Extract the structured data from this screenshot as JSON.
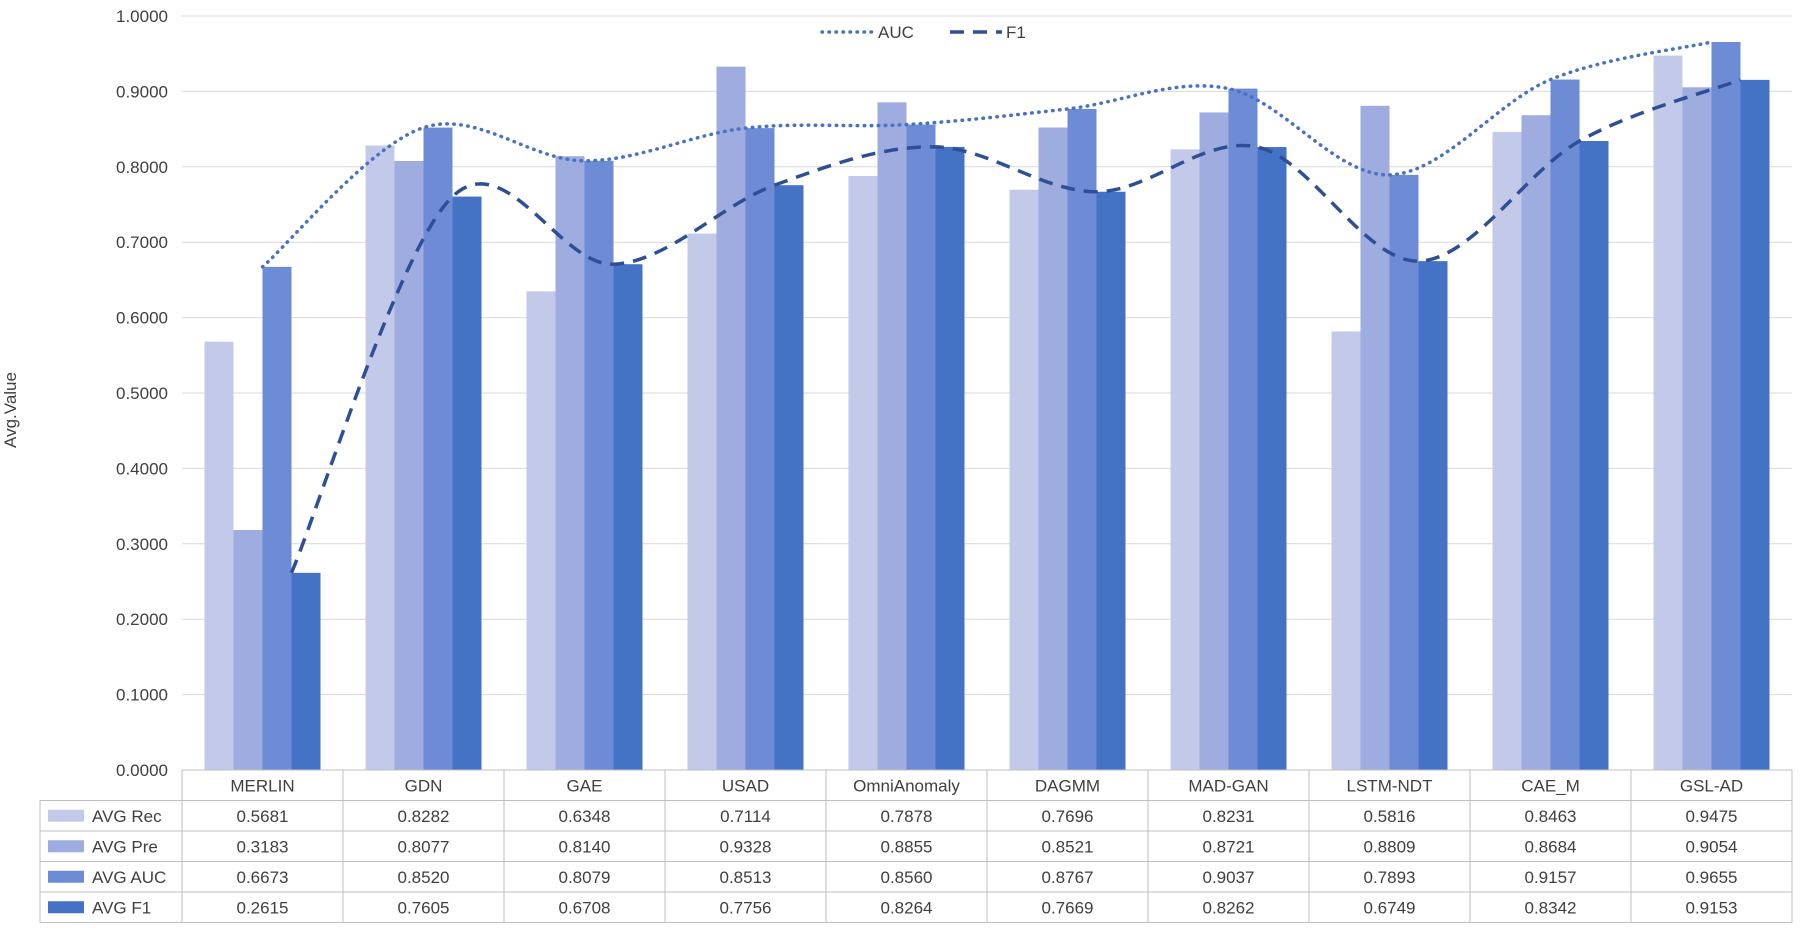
{
  "chart_data": {
    "type": "bar",
    "ylabel": "Avg.Value",
    "ylim": [
      0,
      1
    ],
    "yticks": [
      "0.0000",
      "0.1000",
      "0.2000",
      "0.3000",
      "0.4000",
      "0.5000",
      "0.6000",
      "0.7000",
      "0.8000",
      "0.9000",
      "1.0000"
    ],
    "grid": true,
    "categories": [
      "MERLIN",
      "GDN",
      "GAE",
      "USAD",
      "OmniAnomaly",
      "DAGMM",
      "MAD-GAN",
      "LSTM-NDT",
      "CAE_M",
      "GSL-AD"
    ],
    "series": [
      {
        "name": "AVG Rec",
        "color": "#c3c9e8",
        "values": [
          0.5681,
          0.8282,
          0.6348,
          0.7114,
          0.7878,
          0.7696,
          0.8231,
          0.5816,
          0.8463,
          0.9475
        ]
      },
      {
        "name": "AVG Pre",
        "color": "#9eacdf",
        "values": [
          0.3183,
          0.8077,
          0.814,
          0.9328,
          0.8855,
          0.8521,
          0.8721,
          0.8809,
          0.8684,
          0.9054
        ]
      },
      {
        "name": "AVG AUC",
        "color": "#6e8bd6",
        "values": [
          0.6673,
          0.852,
          0.8079,
          0.8513,
          0.856,
          0.8767,
          0.9037,
          0.7893,
          0.9157,
          0.9655
        ]
      },
      {
        "name": "AVG F1",
        "color": "#4472c4",
        "values": [
          0.2615,
          0.7605,
          0.6708,
          0.7756,
          0.8264,
          0.7669,
          0.8262,
          0.6749,
          0.8342,
          0.9153
        ]
      }
    ],
    "value_labels": {
      "AVG Rec": [
        "0.5681",
        "0.8282",
        "0.6348",
        "0.7114",
        "0.7878",
        "0.7696",
        "0.8231",
        "0.5816",
        "0.8463",
        "0.9475"
      ],
      "AVG Pre": [
        "0.3183",
        "0.8077",
        "0.8140",
        "0.9328",
        "0.8855",
        "0.8521",
        "0.8721",
        "0.8809",
        "0.8684",
        "0.9054"
      ],
      "AVG AUC": [
        "0.6673",
        "0.8520",
        "0.8079",
        "0.8513",
        "0.8560",
        "0.8767",
        "0.9037",
        "0.7893",
        "0.9157",
        "0.9655"
      ],
      "AVG F1": [
        "0.2615",
        "0.7605",
        "0.6708",
        "0.7756",
        "0.8264",
        "0.7669",
        "0.8262",
        "0.6749",
        "0.8342",
        "0.9153"
      ]
    },
    "lines": [
      {
        "name": "AUC",
        "series": "AVG AUC",
        "style": "dotted",
        "color": "#4a72c0"
      },
      {
        "name": "F1",
        "series": "AVG F1",
        "style": "dashed",
        "color": "#2e4f96"
      }
    ],
    "legend": {
      "position": "top-center",
      "items": [
        "AUC",
        "F1"
      ]
    },
    "data_table": true
  }
}
